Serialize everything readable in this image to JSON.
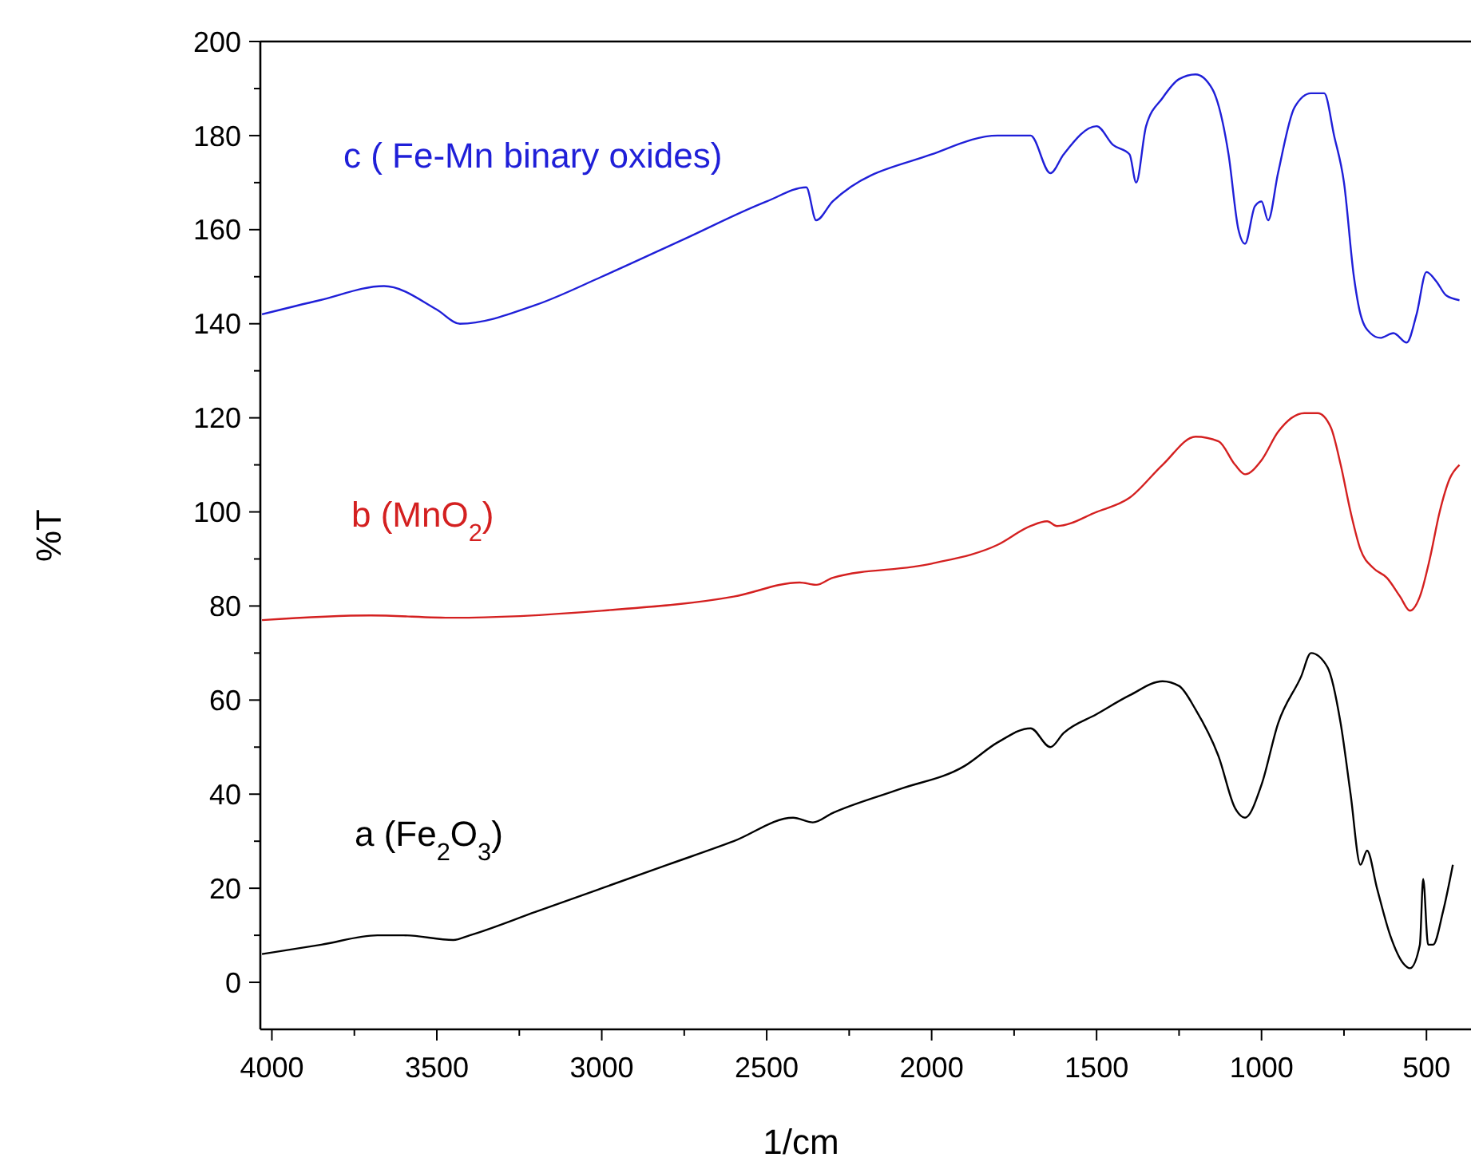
{
  "chart_data": {
    "type": "line",
    "xlabel": "1/cm",
    "ylabel": "%T",
    "xlim": [
      4035,
      365
    ],
    "ylim": [
      -10,
      200
    ],
    "xticks": [
      4000,
      {
        "value": 3750,
        "label": null
      },
      3500,
      {
        "value": 3250,
        "label": null
      },
      3000,
      {
        "value": 2750,
        "label": null
      },
      2500,
      {
        "value": 2250,
        "label": null
      },
      2000,
      {
        "value": 1750,
        "label": null
      },
      1500,
      {
        "value": 1250,
        "label": null
      },
      1000,
      {
        "value": 750,
        "label": null
      },
      500
    ],
    "yticks": [
      0,
      {
        "value": 10,
        "label": null
      },
      20,
      {
        "value": 30,
        "label": null
      },
      40,
      {
        "value": 50,
        "label": null
      },
      60,
      {
        "value": 70,
        "label": null
      },
      80,
      {
        "value": 90,
        "label": null
      },
      100,
      {
        "value": 110,
        "label": null
      },
      120,
      {
        "value": 130,
        "label": null
      },
      140,
      {
        "value": 150,
        "label": null
      },
      160,
      {
        "value": 170,
        "label": null
      },
      180,
      {
        "value": 190,
        "label": null
      },
      200
    ],
    "grid": false,
    "line_style": "solid",
    "series": [
      {
        "name": "c ( Fe-Mn binary oxides)",
        "color": "#1f1fd8",
        "x": [
          4030,
          3855,
          3660,
          3500,
          3430,
          3200,
          3000,
          2750,
          2500,
          2380,
          2350,
          2300,
          2000,
          1800,
          1700,
          1640,
          1600,
          1500,
          1450,
          1400,
          1380,
          1350,
          1300,
          1250,
          1200,
          1150,
          1100,
          1070,
          1050,
          1020,
          1000,
          980,
          950,
          900,
          850,
          810,
          780,
          750,
          720,
          700,
          670,
          640,
          600,
          560,
          530,
          500,
          470,
          440,
          400
        ],
        "values": [
          142,
          145,
          148,
          143,
          140,
          144,
          150,
          158,
          166,
          169,
          162,
          166,
          176,
          180,
          180,
          172,
          176,
          182,
          178,
          176,
          170,
          182,
          188,
          192,
          193,
          190,
          176,
          160,
          157,
          165,
          166,
          162,
          172,
          186,
          189,
          189,
          180,
          170,
          150,
          142,
          138,
          137,
          138,
          136,
          142,
          151,
          149,
          146,
          145
        ]
      },
      {
        "name": "b (MnO$_{2}$)",
        "color": "#d42020",
        "x": [
          4030,
          3700,
          3450,
          3000,
          2600,
          2400,
          2350,
          2300,
          2000,
          1800,
          1700,
          1650,
          1620,
          1500,
          1400,
          1300,
          1200,
          1130,
          1080,
          1050,
          1000,
          950,
          870,
          830,
          790,
          760,
          730,
          700,
          660,
          620,
          580,
          550,
          520,
          490,
          460,
          430,
          400
        ],
        "values": [
          77,
          78,
          77.5,
          79,
          82,
          85,
          84.5,
          86,
          89,
          93,
          97,
          98,
          97,
          100,
          103,
          110,
          116,
          115,
          110,
          108,
          111,
          117,
          121,
          121,
          118,
          110,
          100,
          92,
          88,
          86,
          82,
          79,
          82,
          90,
          100,
          107,
          110
        ]
      },
      {
        "name": "a (Fe$_{2}$O$_{3}$)",
        "color": "#000000",
        "x": [
          4030,
          3850,
          3680,
          3600,
          3450,
          3400,
          3200,
          3000,
          2800,
          2600,
          2420,
          2360,
          2300,
          2100,
          1900,
          1800,
          1700,
          1640,
          1600,
          1500,
          1400,
          1300,
          1250,
          1200,
          1130,
          1080,
          1050,
          1000,
          950,
          880,
          850,
          800,
          760,
          730,
          700,
          680,
          650,
          610,
          570,
          550,
          520,
          510,
          495,
          480,
          450,
          420
        ],
        "values": [
          6,
          8,
          10,
          10,
          9,
          10,
          15,
          20,
          25,
          30,
          35,
          34,
          36,
          41,
          46,
          51,
          54,
          50,
          53,
          57,
          61,
          64,
          63,
          58,
          48,
          37,
          35,
          42,
          55,
          65,
          70,
          67,
          55,
          40,
          25,
          28,
          20,
          10,
          4,
          3,
          8,
          22,
          8,
          8,
          15,
          25
        ]
      }
    ]
  }
}
